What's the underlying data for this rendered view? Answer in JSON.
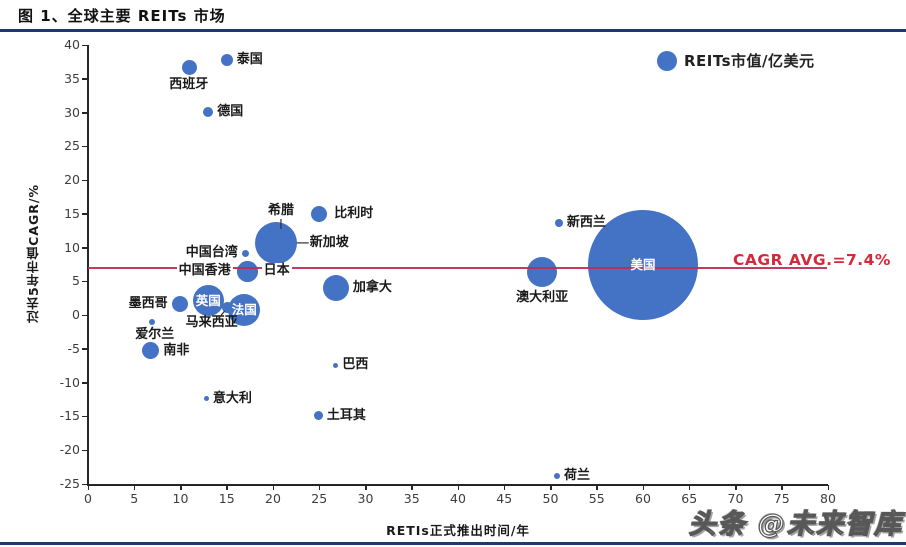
{
  "header": {
    "title": "图 1、全球主要 REITs 市场"
  },
  "legend": {
    "label": "REITs市值/亿美元"
  },
  "watermark": {
    "text": "头条 @未来智库"
  },
  "colors": {
    "bubble": "#4472C4",
    "avg_line": "#C22950",
    "avg_label": "#CF2B3C",
    "rule": "#1e3a68",
    "axis": "#262626"
  },
  "chart_data": {
    "type": "scatter",
    "title": "图 1、全球主要 REITs 市场",
    "xlabel": "RETIs正式推出时间/年",
    "ylabel": "过去5年市值CAGR/%",
    "xlim": [
      0,
      80
    ],
    "ylim": [
      -25,
      40
    ],
    "x_ticks": [
      0,
      5,
      10,
      15,
      20,
      25,
      30,
      35,
      40,
      45,
      50,
      55,
      60,
      65,
      70,
      75,
      80
    ],
    "y_ticks": [
      -25,
      -20,
      -15,
      -10,
      -5,
      0,
      5,
      10,
      15,
      20,
      25,
      30,
      35,
      40
    ],
    "grid": false,
    "legend_label": "REITs市值/亿美元",
    "legend_position": "top-right",
    "avg_line": {
      "y": 7,
      "label": "CAGR AVG.=7.4%"
    },
    "size_note": "bubble radius r is in screen px, proportional to REITs market value (亿美元); no numeric sizes printed on chart",
    "points": [
      {
        "name": "美国",
        "en": "usa",
        "x": 60.0,
        "y": 7.4,
        "r": 55,
        "side": "inside"
      },
      {
        "name": "新加坡",
        "en": "singapore",
        "x": 20.3,
        "y": 10.7,
        "r": 21,
        "side": "right",
        "dx": 9,
        "leader": [
          21,
          0,
          33,
          0
        ]
      },
      {
        "name": "法国",
        "en": "france",
        "x": 16.9,
        "y": 0.8,
        "r": 16,
        "side": "inside"
      },
      {
        "name": "英国",
        "en": "uk",
        "x": 13.0,
        "y": 2.1,
        "r": 15.5,
        "side": "inside"
      },
      {
        "name": "澳大利亚",
        "en": "australia",
        "x": 49.1,
        "y": 6.4,
        "r": 15,
        "side": "below",
        "dy": 1
      },
      {
        "name": "加拿大",
        "en": "canada",
        "x": 26.8,
        "y": 4.0,
        "r": 13,
        "side": "right"
      },
      {
        "name": "中国香港",
        "en": "hong-kong-china",
        "x": 17.2,
        "y": 6.5,
        "r": 10.5,
        "side": "left",
        "whitebg": true
      },
      {
        "name": "日本",
        "en": "japan",
        "x": 17.2,
        "y": 6.5,
        "r": 10.5,
        "side": "right",
        "whitebg": true
      },
      {
        "name": "南非",
        "en": "south-africa",
        "x": 6.8,
        "y": -5.3,
        "r": 8.5,
        "side": "right"
      },
      {
        "name": "墨西哥",
        "en": "mexico",
        "x": 9.9,
        "y": 1.6,
        "r": 8,
        "side": "left"
      },
      {
        "name": "比利时",
        "en": "belgium",
        "x": 25.0,
        "y": 15.0,
        "r": 8,
        "side": "right",
        "dx": 3
      },
      {
        "name": "西班牙",
        "en": "spain",
        "x": 11.0,
        "y": 36.6,
        "r": 7.5,
        "side": "below",
        "dx": -1
      },
      {
        "name": "泰国",
        "en": "thailand",
        "x": 15.0,
        "y": 37.8,
        "r": 6,
        "side": "right"
      },
      {
        "name": "马来西亚",
        "en": "malaysia",
        "x": 15.1,
        "y": 1.2,
        "r": 5.5,
        "side": "below",
        "dx": -16,
        "leader": [
          -3,
          4,
          -9,
          11
        ]
      },
      {
        "name": "德国",
        "en": "germany",
        "x": 13.0,
        "y": 30.1,
        "r": 5,
        "side": "right"
      },
      {
        "name": "土耳其",
        "en": "turkey",
        "x": 24.9,
        "y": -14.9,
        "r": 4.5,
        "side": "right"
      },
      {
        "name": "新西兰",
        "en": "new-zealand",
        "x": 50.9,
        "y": 13.7,
        "r": 4,
        "side": "right"
      },
      {
        "name": "中国台湾",
        "en": "taiwan-china",
        "x": 17.0,
        "y": 9.2,
        "r": 3.5,
        "side": "left"
      },
      {
        "name": "爱尔兰",
        "en": "ireland",
        "x": 6.9,
        "y": -1.0,
        "r": 3,
        "side": "below",
        "dx": 3
      },
      {
        "name": "荷兰",
        "en": "netherlands",
        "x": 50.7,
        "y": -23.8,
        "r": 3,
        "side": "right"
      },
      {
        "name": "意大利",
        "en": "italy",
        "x": 12.8,
        "y": -12.4,
        "r": 2.5,
        "side": "right"
      },
      {
        "name": "巴西",
        "en": "brazil",
        "x": 26.8,
        "y": -7.4,
        "r": 2.5,
        "side": "right"
      },
      {
        "name": "希腊",
        "en": "greece",
        "x": 20.86,
        "y": 15.42,
        "r": 0,
        "side": "center",
        "leader": [
          0,
          8,
          0,
          18
        ]
      }
    ]
  }
}
